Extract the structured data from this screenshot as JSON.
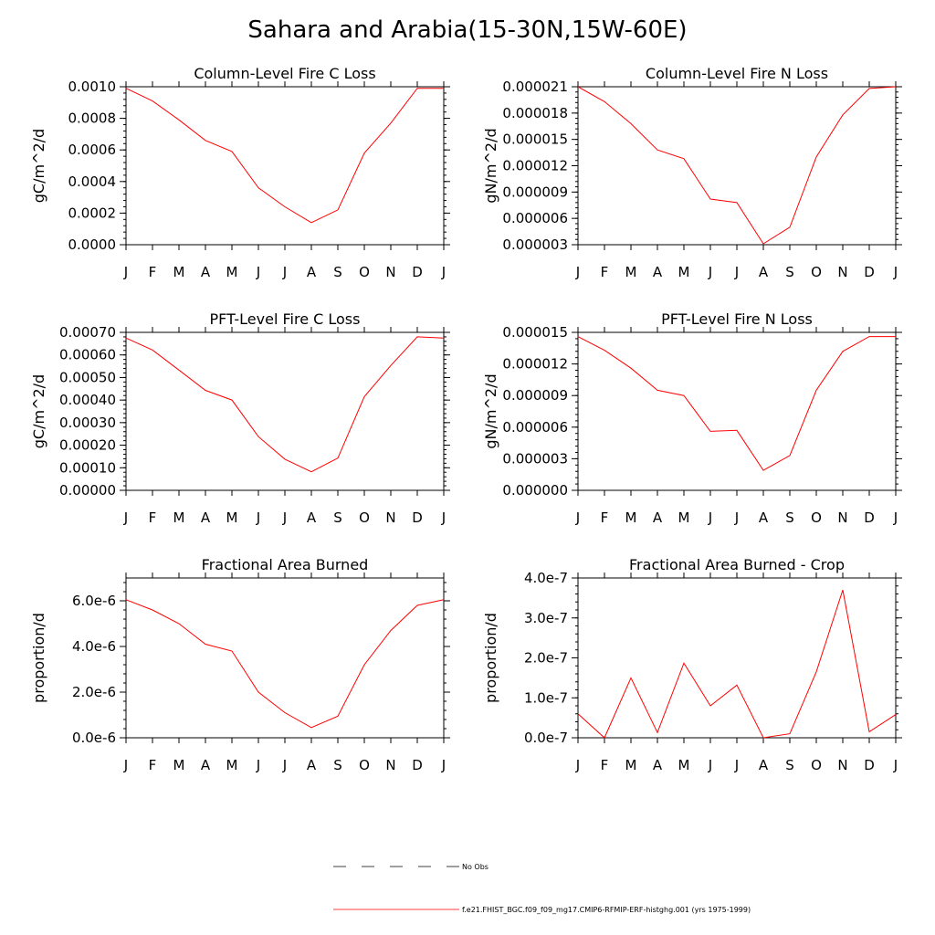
{
  "page_title": "Sahara and Arabia(15-30N,15W-60E)",
  "colors": {
    "model": "#ff0000",
    "obs": "#000000",
    "axis": "#000000"
  },
  "legend": {
    "obs_label": "No Obs",
    "model_label": "f.e21.FHIST_BGC.f09_f09_mg17.CMIP6-RFMIP-ERF-histghg.001 (yrs 1975-1999)"
  },
  "chart_data": [
    {
      "type": "line",
      "title": "Column-Level Fire C Loss",
      "ylabel": "gC/m^2/d",
      "categories": [
        "J",
        "F",
        "M",
        "A",
        "M",
        "J",
        "J",
        "A",
        "S",
        "O",
        "N",
        "D",
        "J"
      ],
      "ylim": [
        0,
        0.001
      ],
      "yticks": [
        0,
        0.0002,
        0.0004,
        0.0006,
        0.0008,
        0.001
      ],
      "ytick_labels": [
        "0.0000",
        "0.0002",
        "0.0004",
        "0.0006",
        "0.0008",
        "0.0010"
      ],
      "series": [
        {
          "name": "model",
          "values": [
            0.00099,
            0.00091,
            0.00079,
            0.00066,
            0.00059,
            0.00036,
            0.00024,
            0.00014,
            0.00022,
            0.00058,
            0.00077,
            0.00099,
            0.00099
          ]
        }
      ]
    },
    {
      "type": "line",
      "title": "Column-Level Fire N Loss",
      "ylabel": "gN/m^2/d",
      "categories": [
        "J",
        "F",
        "M",
        "A",
        "M",
        "J",
        "J",
        "A",
        "S",
        "O",
        "N",
        "D",
        "J"
      ],
      "ylim": [
        3e-06,
        2.1e-05
      ],
      "yticks": [
        3e-06,
        6e-06,
        9e-06,
        1.2e-05,
        1.5e-05,
        1.8e-05,
        2.1e-05
      ],
      "ytick_labels": [
        "0.000003",
        "0.000006",
        "0.000009",
        "0.000012",
        "0.000015",
        "0.000018",
        "0.000021"
      ],
      "series": [
        {
          "name": "model",
          "values": [
            2.1e-05,
            1.93e-05,
            1.68e-05,
            1.38e-05,
            1.28e-05,
            8.2e-06,
            7.8e-06,
            3.1e-06,
            5e-06,
            1.3e-05,
            1.78e-05,
            2.08e-05,
            2.1e-05
          ]
        }
      ]
    },
    {
      "type": "line",
      "title": "PFT-Level Fire C Loss",
      "ylabel": "gC/m^2/d",
      "categories": [
        "J",
        "F",
        "M",
        "A",
        "M",
        "J",
        "J",
        "A",
        "S",
        "O",
        "N",
        "D",
        "J"
      ],
      "ylim": [
        0,
        0.0007
      ],
      "yticks": [
        0,
        0.0001,
        0.0002,
        0.0003,
        0.0004,
        0.0005,
        0.0006,
        0.0007
      ],
      "ytick_labels": [
        "0.00000",
        "0.00010",
        "0.00020",
        "0.00030",
        "0.00040",
        "0.00050",
        "0.00060",
        "0.00070"
      ],
      "series": [
        {
          "name": "model",
          "values": [
            0.000675,
            0.000622,
            0.000533,
            0.000443,
            0.0004,
            0.000238,
            0.000138,
            8.2e-05,
            0.000143,
            0.000415,
            0.000553,
            0.00068,
            0.000675
          ]
        }
      ]
    },
    {
      "type": "line",
      "title": "PFT-Level Fire N Loss",
      "ylabel": "gN/m^2/d",
      "categories": [
        "J",
        "F",
        "M",
        "A",
        "M",
        "J",
        "J",
        "A",
        "S",
        "O",
        "N",
        "D",
        "J"
      ],
      "ylim": [
        0,
        1.5e-05
      ],
      "yticks": [
        0,
        3e-06,
        6e-06,
        9e-06,
        1.2e-05,
        1.5e-05
      ],
      "ytick_labels": [
        "0.000000",
        "0.000003",
        "0.000006",
        "0.000009",
        "0.000012",
        "0.000015"
      ],
      "series": [
        {
          "name": "model",
          "values": [
            1.46e-05,
            1.33e-05,
            1.16e-05,
            9.5e-06,
            9e-06,
            5.6e-06,
            5.7e-06,
            1.9e-06,
            3.3e-06,
            9.5e-06,
            1.32e-05,
            1.46e-05,
            1.46e-05
          ]
        }
      ]
    },
    {
      "type": "line",
      "title": "Fractional Area Burned",
      "ylabel": "proportion/d",
      "categories": [
        "J",
        "F",
        "M",
        "A",
        "M",
        "J",
        "J",
        "A",
        "S",
        "O",
        "N",
        "D",
        "J"
      ],
      "ylim": [
        0,
        7e-06
      ],
      "yticks": [
        0,
        2e-06,
        4e-06,
        6e-06
      ],
      "ytick_labels": [
        "0.0e-6",
        "2.0e-6",
        "4.0e-6",
        "6.0e-6"
      ],
      "series": [
        {
          "name": "model",
          "values": [
            6.05e-06,
            5.6e-06,
            5e-06,
            4.1e-06,
            3.8e-06,
            2e-06,
            1.1e-06,
            4.5e-07,
            9.5e-07,
            3.2e-06,
            4.7e-06,
            5.8e-06,
            6.05e-06
          ]
        }
      ]
    },
    {
      "type": "line",
      "title": "Fractional Area Burned - Crop",
      "ylabel": "proportion/d",
      "categories": [
        "J",
        "F",
        "M",
        "A",
        "M",
        "J",
        "J",
        "A",
        "S",
        "O",
        "N",
        "D",
        "J"
      ],
      "ylim": [
        0,
        4e-07
      ],
      "yticks": [
        0,
        1e-07,
        2e-07,
        3e-07,
        4e-07
      ],
      "ytick_labels": [
        "0.0e-7",
        "1.0e-7",
        "2.0e-7",
        "3.0e-7",
        "4.0e-7"
      ],
      "series": [
        {
          "name": "model",
          "values": [
            6e-08,
            0.0,
            1.5e-07,
            1.3e-08,
            1.87e-07,
            8e-08,
            1.32e-07,
            0.0,
            1e-08,
            1.65e-07,
            3.7e-07,
            1.5e-08,
            5.8e-08
          ]
        }
      ]
    }
  ]
}
